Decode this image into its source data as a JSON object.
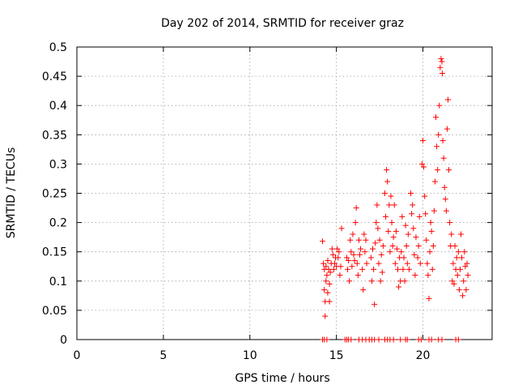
{
  "chart_data": {
    "type": "scatter",
    "title": "Day 202 of 2014, SRMTID for receiver graz",
    "xlabel": "GPS time / hours",
    "ylabel": "SRMTID / TECUs",
    "xlim": [
      0,
      24
    ],
    "ylim": [
      0,
      0.5
    ],
    "x_ticks": [
      0,
      5,
      10,
      15,
      20
    ],
    "x_tick_labels": [
      "0",
      "5",
      "10",
      "15",
      "20"
    ],
    "y_ticks": [
      0,
      0.05,
      0.1,
      0.15,
      0.2,
      0.25,
      0.3,
      0.35,
      0.4,
      0.45,
      0.5
    ],
    "y_tick_labels": [
      "0",
      "0.05",
      "0.1",
      "0.15",
      "0.2",
      "0.25",
      "0.3",
      "0.35",
      "0.4",
      "0.45",
      "0.5"
    ],
    "grid": true,
    "marker": "+",
    "color": "#ff0000",
    "series": [
      {
        "name": "SRMTID",
        "points": [
          [
            14.2,
            0.168
          ],
          [
            14.25,
            0.13
          ],
          [
            14.3,
            0.12
          ],
          [
            14.3,
            0.085
          ],
          [
            14.35,
            0.065
          ],
          [
            14.35,
            0.04
          ],
          [
            14.4,
            0.1
          ],
          [
            14.4,
            0.125
          ],
          [
            14.45,
            0.11
          ],
          [
            14.5,
            0.135
          ],
          [
            14.5,
            0.08
          ],
          [
            14.55,
            0.12
          ],
          [
            14.6,
            0.095
          ],
          [
            14.6,
            0.065
          ],
          [
            14.65,
            0.115
          ],
          [
            14.7,
            0.13
          ],
          [
            14.75,
            0.155
          ],
          [
            14.8,
            0.145
          ],
          [
            14.85,
            0.12
          ],
          [
            14.9,
            0.13
          ],
          [
            14.95,
            0.14
          ],
          [
            15.0,
            0.125
          ],
          [
            15.05,
            0.155
          ],
          [
            15.1,
            0.14
          ],
          [
            15.15,
            0.15
          ],
          [
            15.2,
            0.11
          ],
          [
            15.25,
            0.125
          ],
          [
            15.3,
            0.19
          ],
          [
            15.6,
            0.14
          ],
          [
            15.65,
            0.12
          ],
          [
            15.7,
            0.135
          ],
          [
            15.75,
            0.1
          ],
          [
            15.8,
            0.17
          ],
          [
            15.85,
            0.15
          ],
          [
            15.9,
            0.125
          ],
          [
            15.95,
            0.18
          ],
          [
            16.0,
            0.145
          ],
          [
            16.05,
            0.135
          ],
          [
            16.1,
            0.2
          ],
          [
            16.15,
            0.225
          ],
          [
            16.2,
            0.13
          ],
          [
            16.25,
            0.11
          ],
          [
            16.3,
            0.17
          ],
          [
            16.35,
            0.145
          ],
          [
            16.4,
            0.155
          ],
          [
            16.5,
            0.12
          ],
          [
            16.55,
            0.085
          ],
          [
            16.6,
            0.18
          ],
          [
            16.65,
            0.15
          ],
          [
            16.7,
            0.17
          ],
          [
            16.75,
            0.13
          ],
          [
            17.0,
            0.14
          ],
          [
            17.05,
            0.1
          ],
          [
            17.1,
            0.155
          ],
          [
            17.15,
            0.12
          ],
          [
            17.2,
            0.06
          ],
          [
            17.25,
            0.165
          ],
          [
            17.3,
            0.2
          ],
          [
            17.35,
            0.23
          ],
          [
            17.4,
            0.19
          ],
          [
            17.45,
            0.13
          ],
          [
            17.5,
            0.17
          ],
          [
            17.55,
            0.1
          ],
          [
            17.6,
            0.145
          ],
          [
            17.65,
            0.115
          ],
          [
            17.7,
            0.16
          ],
          [
            17.8,
            0.25
          ],
          [
            17.85,
            0.21
          ],
          [
            17.9,
            0.29
          ],
          [
            17.95,
            0.27
          ],
          [
            18.0,
            0.185
          ],
          [
            18.05,
            0.23
          ],
          [
            18.1,
            0.15
          ],
          [
            18.15,
            0.245
          ],
          [
            18.2,
            0.2
          ],
          [
            18.25,
            0.16
          ],
          [
            18.3,
            0.175
          ],
          [
            18.35,
            0.23
          ],
          [
            18.4,
            0.13
          ],
          [
            18.45,
            0.185
          ],
          [
            18.5,
            0.155
          ],
          [
            18.55,
            0.12
          ],
          [
            18.6,
            0.09
          ],
          [
            18.65,
            0.14
          ],
          [
            18.7,
            0.1
          ],
          [
            18.75,
            0.15
          ],
          [
            18.8,
            0.21
          ],
          [
            18.85,
            0.12
          ],
          [
            18.9,
            0.14
          ],
          [
            18.95,
            0.1
          ],
          [
            19.0,
            0.195
          ],
          [
            19.05,
            0.16
          ],
          [
            19.1,
            0.13
          ],
          [
            19.15,
            0.18
          ],
          [
            19.2,
            0.12
          ],
          [
            19.3,
            0.25
          ],
          [
            19.35,
            0.215
          ],
          [
            19.4,
            0.23
          ],
          [
            19.45,
            0.19
          ],
          [
            19.5,
            0.145
          ],
          [
            19.55,
            0.11
          ],
          [
            19.6,
            0.175
          ],
          [
            19.7,
            0.14
          ],
          [
            19.75,
            0.16
          ],
          [
            19.8,
            0.21
          ],
          [
            19.85,
            0.13
          ],
          [
            19.95,
            0.3
          ],
          [
            20.0,
            0.34
          ],
          [
            20.05,
            0.295
          ],
          [
            20.1,
            0.245
          ],
          [
            20.15,
            0.215
          ],
          [
            20.2,
            0.17
          ],
          [
            20.25,
            0.13
          ],
          [
            20.3,
            0.11
          ],
          [
            20.35,
            0.07
          ],
          [
            20.4,
            0.15
          ],
          [
            20.45,
            0.2
          ],
          [
            20.5,
            0.185
          ],
          [
            20.55,
            0.12
          ],
          [
            20.6,
            0.16
          ],
          [
            20.65,
            0.22
          ],
          [
            20.7,
            0.27
          ],
          [
            20.75,
            0.38
          ],
          [
            20.8,
            0.33
          ],
          [
            20.85,
            0.29
          ],
          [
            20.9,
            0.35
          ],
          [
            20.95,
            0.4
          ],
          [
            21.0,
            0.465
          ],
          [
            21.05,
            0.48
          ],
          [
            21.1,
            0.475
          ],
          [
            21.12,
            0.455
          ],
          [
            21.15,
            0.34
          ],
          [
            21.2,
            0.31
          ],
          [
            21.25,
            0.26
          ],
          [
            21.3,
            0.24
          ],
          [
            21.35,
            0.22
          ],
          [
            21.4,
            0.36
          ],
          [
            21.45,
            0.41
          ],
          [
            21.5,
            0.29
          ],
          [
            21.55,
            0.2
          ],
          [
            21.6,
            0.16
          ],
          [
            21.65,
            0.18
          ],
          [
            21.7,
            0.1
          ],
          [
            21.75,
            0.13
          ],
          [
            21.8,
            0.095
          ],
          [
            21.85,
            0.16
          ],
          [
            21.9,
            0.12
          ],
          [
            21.95,
            0.14
          ],
          [
            22.0,
            0.11
          ],
          [
            22.05,
            0.15
          ],
          [
            22.1,
            0.085
          ],
          [
            22.15,
            0.12
          ],
          [
            22.2,
            0.18
          ],
          [
            22.25,
            0.14
          ],
          [
            22.3,
            0.075
          ],
          [
            22.35,
            0.1
          ],
          [
            22.4,
            0.15
          ],
          [
            22.45,
            0.125
          ],
          [
            22.5,
            0.085
          ],
          [
            22.55,
            0.13
          ],
          [
            22.6,
            0.11
          ],
          [
            14.2,
            0.0
          ],
          [
            14.3,
            0.0
          ],
          [
            14.45,
            0.0
          ],
          [
            15.5,
            0.0
          ],
          [
            15.6,
            0.0
          ],
          [
            15.7,
            0.0
          ],
          [
            15.85,
            0.0
          ],
          [
            16.3,
            0.0
          ],
          [
            16.5,
            0.0
          ],
          [
            16.7,
            0.0
          ],
          [
            16.9,
            0.0
          ],
          [
            17.05,
            0.0
          ],
          [
            17.2,
            0.0
          ],
          [
            17.45,
            0.0
          ],
          [
            17.8,
            0.0
          ],
          [
            17.95,
            0.0
          ],
          [
            18.1,
            0.0
          ],
          [
            18.3,
            0.0
          ],
          [
            18.7,
            0.0
          ],
          [
            19.0,
            0.0
          ],
          [
            19.1,
            0.0
          ],
          [
            19.75,
            0.0
          ],
          [
            19.9,
            0.0
          ],
          [
            20.35,
            0.0
          ],
          [
            20.5,
            0.0
          ],
          [
            20.9,
            0.0
          ],
          [
            21.1,
            0.0
          ],
          [
            21.9,
            0.0
          ],
          [
            22.05,
            0.0
          ]
        ]
      }
    ]
  }
}
